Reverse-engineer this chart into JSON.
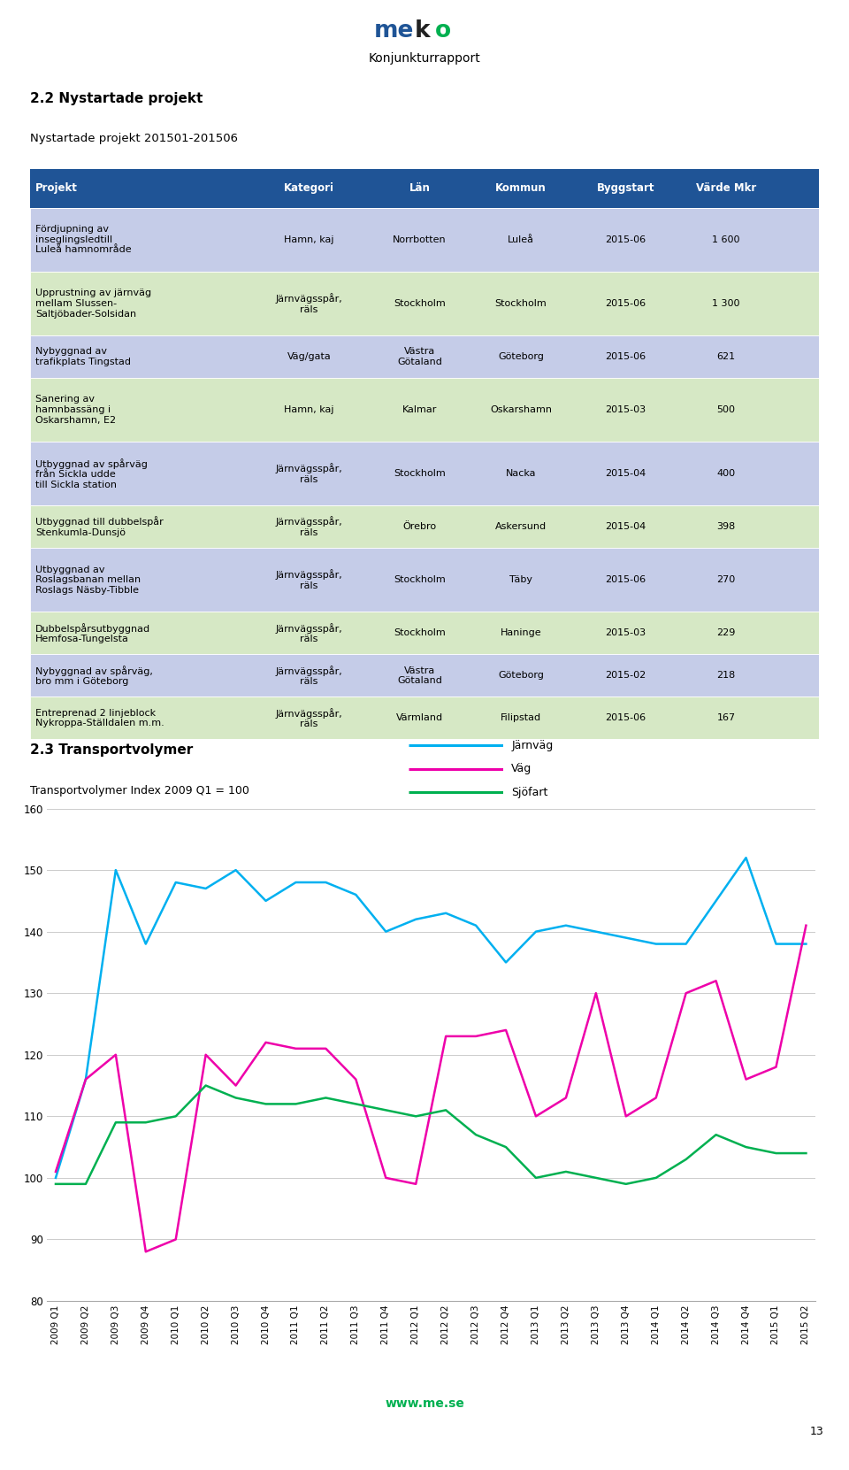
{
  "title": "Konjunkturrapport",
  "section_title": "2.2 Nystartade projekt",
  "subtitle": "Nystartade projekt 201501-201506",
  "table_headers": [
    "Projekt",
    "Kategori",
    "Län",
    "Kommun",
    "Byggstart",
    "Värde Mkr"
  ],
  "table_rows": [
    [
      "Fördjupning av\ninseglingsledtill\nLuleå hamnområde",
      "Hamn, kaj",
      "Norrbotten",
      "Luleå",
      "2015-06",
      "1 600"
    ],
    [
      "Upprustning av järnväg\nmellam Slussen-\nSaltjöbader-Solsidan",
      "Järnvägsspår,\nräls",
      "Stockholm",
      "Stockholm",
      "2015-06",
      "1 300"
    ],
    [
      "Nybyggnad av\ntrafikplats Tingstad",
      "Väg/gata",
      "Västra\nGötaland",
      "Göteborg",
      "2015-06",
      "621"
    ],
    [
      "Sanering av\nhamnbassäng i\nOskarshamn, E2",
      "Hamn, kaj",
      "Kalmar",
      "Oskarshamn",
      "2015-03",
      "500"
    ],
    [
      "Utbyggnad av spårväg\nfrån Sickla udde\ntill Sickla station",
      "Järnvägsspår,\nräls",
      "Stockholm",
      "Nacka",
      "2015-04",
      "400"
    ],
    [
      "Utbyggnad till dubbelspår\nStenkumla-Dunsjö",
      "Järnvägsspår,\nräls",
      "Örebro",
      "Askersund",
      "2015-04",
      "398"
    ],
    [
      "Utbyggnad av\nRoslagsbanan mellan\nRoslags Näsby-Tibble",
      "Järnvägsspår,\nräls",
      "Stockholm",
      "Täby",
      "2015-06",
      "270"
    ],
    [
      "Dubbelspårsutbyggnad\nHemfosa-Tungelsta",
      "Järnvägsspår,\nräls",
      "Stockholm",
      "Haninge",
      "2015-03",
      "229"
    ],
    [
      "Nybyggnad av spårväg,\nbro mm i Göteborg",
      "Järnvägsspår,\nräls",
      "Västra\nGötaland",
      "Göteborg",
      "2015-02",
      "218"
    ],
    [
      "Entreprenad 2 linjeblock\nNykroppa-Ställdalen m.m.",
      "Järnvägsspår,\nräls",
      "Värmland",
      "Filipstad",
      "2015-06",
      "167"
    ]
  ],
  "row_colors": [
    "#c5cce8",
    "#d6e8c5",
    "#c5cce8",
    "#d6e8c5",
    "#c5cce8",
    "#d6e8c5",
    "#c5cce8",
    "#d6e8c5",
    "#c5cce8",
    "#d6e8c5"
  ],
  "header_color": "#1f5496",
  "header_text_color": "#ffffff",
  "section_chart_title": "2.3 Transportvolymer",
  "chart_subtitle": "Transportvolymer Index 2009 Q1 = 100",
  "legend_labels": [
    "Järnväg",
    "Väg",
    "Sjöfart"
  ],
  "legend_colors": [
    "#00b0f0",
    "#ee00aa",
    "#00b050"
  ],
  "x_labels": [
    "2009 Q1",
    "2009 Q2",
    "2009 Q3",
    "2009 Q4",
    "2010 Q1",
    "2010 Q2",
    "2010 Q3",
    "2010 Q4",
    "2011 Q1",
    "2011 Q2",
    "2011 Q3",
    "2011 Q4",
    "2012 Q1",
    "2012 Q2",
    "2012 Q3",
    "2012 Q4",
    "2013 Q1",
    "2013 Q2",
    "2013 Q3",
    "2013 Q4",
    "2014 Q1",
    "2014 Q2",
    "2014 Q3",
    "2014 Q4",
    "2015 Q1",
    "2015 Q2"
  ],
  "y_jarnvag": [
    100,
    116,
    150,
    138,
    148,
    147,
    150,
    145,
    148,
    148,
    146,
    140,
    142,
    143,
    141,
    135,
    140,
    141,
    140,
    139,
    138,
    138,
    145,
    152,
    138,
    138
  ],
  "y_vag": [
    101,
    116,
    120,
    88,
    90,
    120,
    115,
    122,
    121,
    121,
    116,
    100,
    99,
    123,
    123,
    124,
    110,
    113,
    130,
    110,
    113,
    130,
    132,
    116,
    118,
    141
  ],
  "y_sjofart": [
    99,
    99,
    109,
    109,
    110,
    115,
    113,
    112,
    112,
    113,
    112,
    111,
    110,
    111,
    107,
    105,
    100,
    101,
    100,
    99,
    100,
    103,
    107,
    105,
    104,
    104
  ],
  "ylim": [
    80,
    160
  ],
  "yticks": [
    80,
    90,
    100,
    110,
    120,
    130,
    140,
    150,
    160
  ],
  "footer_url": "www.me.se",
  "footer_page": "13",
  "meko_blue": "#1f5496",
  "meko_green": "#00b050"
}
